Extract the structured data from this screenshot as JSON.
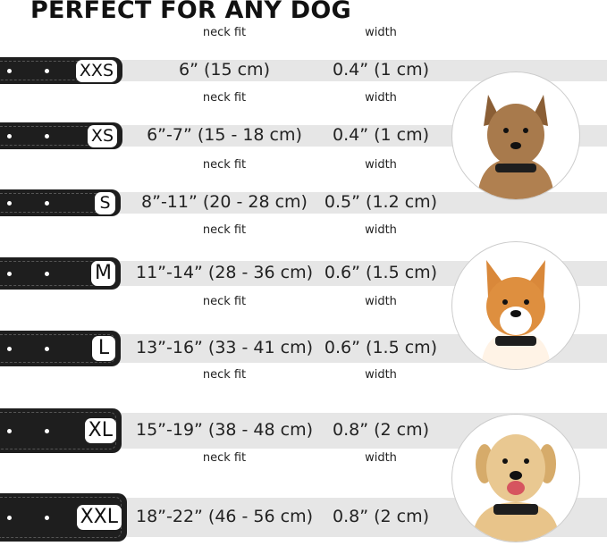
{
  "title": "PERFECT FOR ANY DOG",
  "neck_label": "neck fit",
  "width_label": "width",
  "sizes": [
    {
      "size": "XXS",
      "neck": "6” (15 cm)",
      "width": "0.4” (1 cm)"
    },
    {
      "size": "XS",
      "neck": "6”-7” (15 - 18 cm)",
      "width": "0.4” (1 cm)"
    },
    {
      "size": "S",
      "neck": "8”-11” (20 - 28 cm)",
      "width": "0.5” (1.2 cm)"
    },
    {
      "size": "M",
      "neck": "11”-14” (28 - 36 cm)",
      "width": "0.6” (1.5 cm)"
    },
    {
      "size": "L",
      "neck": "13”-16” (33 - 41 cm)",
      "width": "0.6” (1.5 cm)"
    },
    {
      "size": "XL",
      "neck": "15”-19” (38 - 48 cm)",
      "width": "0.8” (2 cm)"
    },
    {
      "size": "XXL",
      "neck": "18”-22” (46 - 56 cm)",
      "width": "0.8” (2 cm)"
    }
  ],
  "colors": {
    "collar": "#1e1e1e",
    "bar": "#e6e6e6"
  }
}
